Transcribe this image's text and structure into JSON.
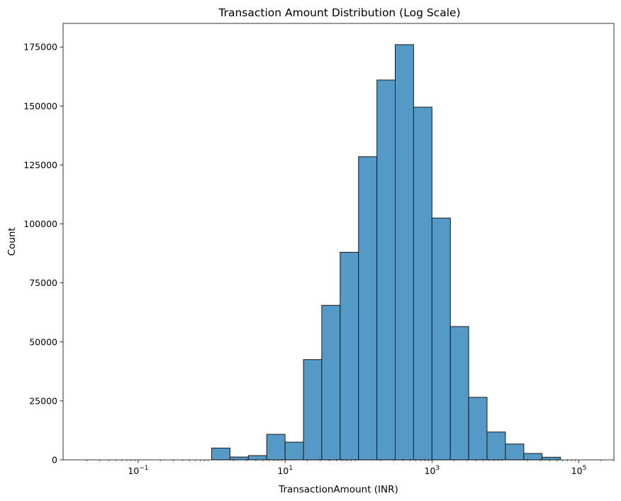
{
  "chart_data": {
    "type": "bar",
    "title": "Transaction Amount Distribution (Log Scale)",
    "xlabel": "TransactionAmount (INR)",
    "ylabel": "Count",
    "x_scale": "log",
    "xlim": [
      0.0095,
      300000
    ],
    "ylim": [
      0,
      185000
    ],
    "x_ticks": [
      {
        "value": 0.1,
        "base": "10",
        "exp": "−1"
      },
      {
        "value": 10,
        "base": "10",
        "exp": "1"
      },
      {
        "value": 1000,
        "base": "10",
        "exp": "3"
      },
      {
        "value": 100000,
        "base": "10",
        "exp": "5"
      }
    ],
    "y_ticks": [
      0,
      25000,
      50000,
      75000,
      100000,
      125000,
      150000,
      175000
    ],
    "y_tick_labels": [
      "0",
      "25000",
      "50000",
      "75000",
      "100000",
      "125000",
      "150000",
      "175000"
    ],
    "bar_color": "#5599c7",
    "edge_color": "#1a1a1a",
    "grid": false,
    "bins": [
      {
        "x0": 0.01,
        "x1": 0.0178,
        "count": 0
      },
      {
        "x0": 0.0178,
        "x1": 0.0316,
        "count": 0
      },
      {
        "x0": 0.0316,
        "x1": 0.0562,
        "count": 0
      },
      {
        "x0": 0.0562,
        "x1": 0.1,
        "count": 0
      },
      {
        "x0": 0.1,
        "x1": 0.178,
        "count": 0
      },
      {
        "x0": 0.178,
        "x1": 0.316,
        "count": 0
      },
      {
        "x0": 0.316,
        "x1": 0.562,
        "count": 0
      },
      {
        "x0": 0.562,
        "x1": 1.0,
        "count": 0
      },
      {
        "x0": 1.0,
        "x1": 1.78,
        "count": 5000
      },
      {
        "x0": 1.78,
        "x1": 3.16,
        "count": 1200
      },
      {
        "x0": 3.16,
        "x1": 5.62,
        "count": 1800
      },
      {
        "x0": 5.62,
        "x1": 10.0,
        "count": 10800
      },
      {
        "x0": 10.0,
        "x1": 17.8,
        "count": 7500
      },
      {
        "x0": 17.8,
        "x1": 31.6,
        "count": 42500
      },
      {
        "x0": 31.6,
        "x1": 56.2,
        "count": 65500
      },
      {
        "x0": 56.2,
        "x1": 100,
        "count": 88000
      },
      {
        "x0": 100,
        "x1": 178,
        "count": 128500
      },
      {
        "x0": 178,
        "x1": 316,
        "count": 161000
      },
      {
        "x0": 316,
        "x1": 562,
        "count": 176000
      },
      {
        "x0": 562,
        "x1": 1000,
        "count": 149500
      },
      {
        "x0": 1000,
        "x1": 1780,
        "count": 102500
      },
      {
        "x0": 1780,
        "x1": 3160,
        "count": 56500
      },
      {
        "x0": 3160,
        "x1": 5620,
        "count": 26500
      },
      {
        "x0": 5620,
        "x1": 10000,
        "count": 11800
      },
      {
        "x0": 10000,
        "x1": 17800,
        "count": 6700
      },
      {
        "x0": 17800,
        "x1": 31600,
        "count": 2700
      },
      {
        "x0": 31600,
        "x1": 56200,
        "count": 1100
      },
      {
        "x0": 56200,
        "x1": 100000,
        "count": 0
      },
      {
        "x0": 100000,
        "x1": 178000,
        "count": 0
      }
    ]
  }
}
